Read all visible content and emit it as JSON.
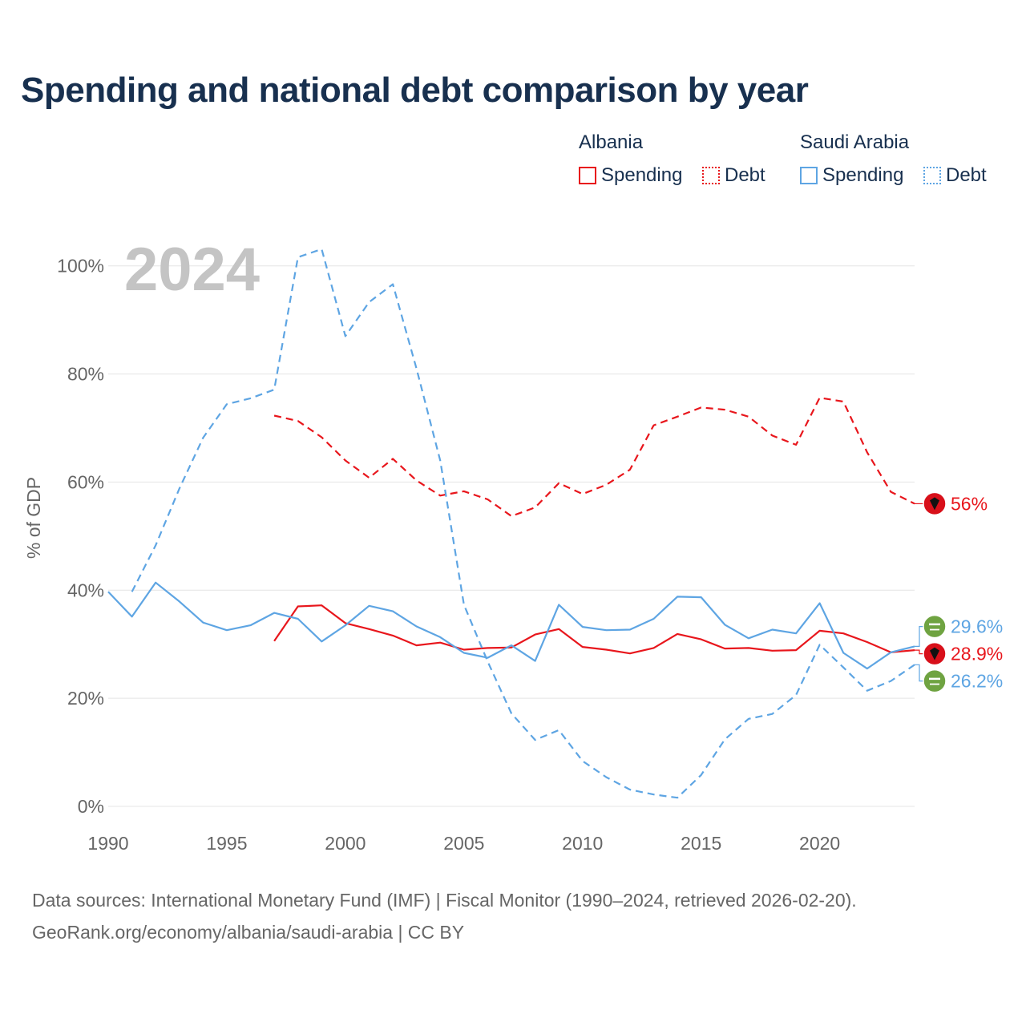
{
  "title": "Spending and national debt comparison by year",
  "legend": {
    "groups": [
      {
        "country": "Albania",
        "color": "#e8161c",
        "items": [
          {
            "label": "Spending",
            "style": "solid"
          },
          {
            "label": "Debt",
            "style": "dotted"
          }
        ]
      },
      {
        "country": "Saudi Arabia",
        "color": "#5ea5e3",
        "items": [
          {
            "label": "Spending",
            "style": "solid"
          },
          {
            "label": "Debt",
            "style": "dotted"
          }
        ]
      }
    ]
  },
  "footer": {
    "line1": "Data sources: International Monetary Fund (IMF) | Fiscal Monitor (1990–2024, retrieved 2026-02-20).",
    "line2": "GeoRank.org/economy/albania/saudi-arabia | CC BY"
  },
  "chart_data": {
    "type": "line",
    "title": "Spending and national debt comparison by year",
    "year_label": "2024",
    "xlabel": "",
    "ylabel": "% of GDP",
    "xlim": [
      1990,
      2024
    ],
    "ylim": [
      0,
      105
    ],
    "x_ticks": [
      1990,
      1995,
      2000,
      2005,
      2010,
      2015,
      2020
    ],
    "y_ticks": [
      0,
      20,
      40,
      60,
      80,
      100
    ],
    "y_tick_labels": [
      "0%",
      "20%",
      "40%",
      "60%",
      "80%",
      "100%"
    ],
    "grid": true,
    "series": [
      {
        "name": "Albania Debt",
        "country": "Albania",
        "kind": "Debt",
        "color": "#e8161c",
        "dash": true,
        "x": [
          1997,
          1998,
          1999,
          2000,
          2001,
          2002,
          2003,
          2004,
          2005,
          2006,
          2007,
          2008,
          2009,
          2010,
          2011,
          2012,
          2013,
          2014,
          2015,
          2016,
          2017,
          2018,
          2019,
          2020,
          2021,
          2022,
          2023,
          2024
        ],
        "values": [
          72.3,
          71.3,
          68.3,
          64.0,
          60.8,
          64.3,
          60.3,
          57.5,
          58.3,
          56.8,
          53.7,
          55.3,
          59.8,
          57.8,
          59.5,
          62.3,
          70.5,
          72.1,
          73.8,
          73.4,
          72.1,
          68.6,
          66.9,
          75.6,
          74.9,
          65.5,
          58.2,
          56.0
        ],
        "end_label": "56%"
      },
      {
        "name": "Albania Spending",
        "country": "Albania",
        "kind": "Spending",
        "color": "#e8161c",
        "dash": false,
        "x": [
          1997,
          1998,
          1999,
          2000,
          2001,
          2002,
          2003,
          2004,
          2005,
          2006,
          2007,
          2008,
          2009,
          2010,
          2011,
          2012,
          2013,
          2014,
          2015,
          2016,
          2017,
          2018,
          2019,
          2020,
          2021,
          2022,
          2023,
          2024
        ],
        "values": [
          30.6,
          37.0,
          37.2,
          33.9,
          32.8,
          31.6,
          29.8,
          30.3,
          29.0,
          29.3,
          29.4,
          31.8,
          32.8,
          29.5,
          29.0,
          28.3,
          29.3,
          31.9,
          30.9,
          29.2,
          29.3,
          28.8,
          28.9,
          32.5,
          32.0,
          30.4,
          28.5,
          28.9
        ],
        "end_label": "28.9%"
      },
      {
        "name": "Saudi Arabia Debt",
        "country": "Saudi Arabia",
        "kind": "Debt",
        "color": "#5ea5e3",
        "dash": true,
        "x": [
          1991,
          1992,
          1993,
          1994,
          1995,
          1996,
          1997,
          1998,
          1999,
          2000,
          2001,
          2002,
          2003,
          2004,
          2005,
          2006,
          2007,
          2008,
          2009,
          2010,
          2011,
          2012,
          2013,
          2014,
          2015,
          2016,
          2017,
          2018,
          2019,
          2020,
          2021,
          2022,
          2023,
          2024
        ],
        "values": [
          39.7,
          48.3,
          58.8,
          68.2,
          74.4,
          75.5,
          77.1,
          101.6,
          103.1,
          87.0,
          93.3,
          96.6,
          81.0,
          64.0,
          37.3,
          26.8,
          17.2,
          12.3,
          14.1,
          8.4,
          5.4,
          3.1,
          2.2,
          1.6,
          5.8,
          12.4,
          16.2,
          17.1,
          20.6,
          29.9,
          25.7,
          21.4,
          23.2,
          26.2
        ],
        "end_label": "26.2%"
      },
      {
        "name": "Saudi Arabia Spending",
        "country": "Saudi Arabia",
        "kind": "Spending",
        "color": "#5ea5e3",
        "dash": false,
        "x": [
          1990,
          1991,
          1992,
          1993,
          1994,
          1995,
          1996,
          1997,
          1998,
          1999,
          2000,
          2001,
          2002,
          2003,
          2004,
          2005,
          2006,
          2007,
          2008,
          2009,
          2010,
          2011,
          2012,
          2013,
          2014,
          2015,
          2016,
          2017,
          2018,
          2019,
          2020,
          2021,
          2022,
          2023,
          2024
        ],
        "values": [
          39.7,
          35.1,
          41.4,
          37.9,
          34.0,
          32.6,
          33.5,
          35.8,
          34.7,
          30.5,
          33.5,
          37.1,
          36.1,
          33.3,
          31.3,
          28.4,
          27.5,
          29.8,
          26.9,
          37.3,
          33.2,
          32.6,
          32.7,
          34.7,
          38.8,
          38.7,
          33.6,
          31.1,
          32.7,
          32.0,
          37.6,
          28.4,
          25.5,
          28.5,
          29.6
        ],
        "end_label": "29.6%"
      }
    ]
  }
}
